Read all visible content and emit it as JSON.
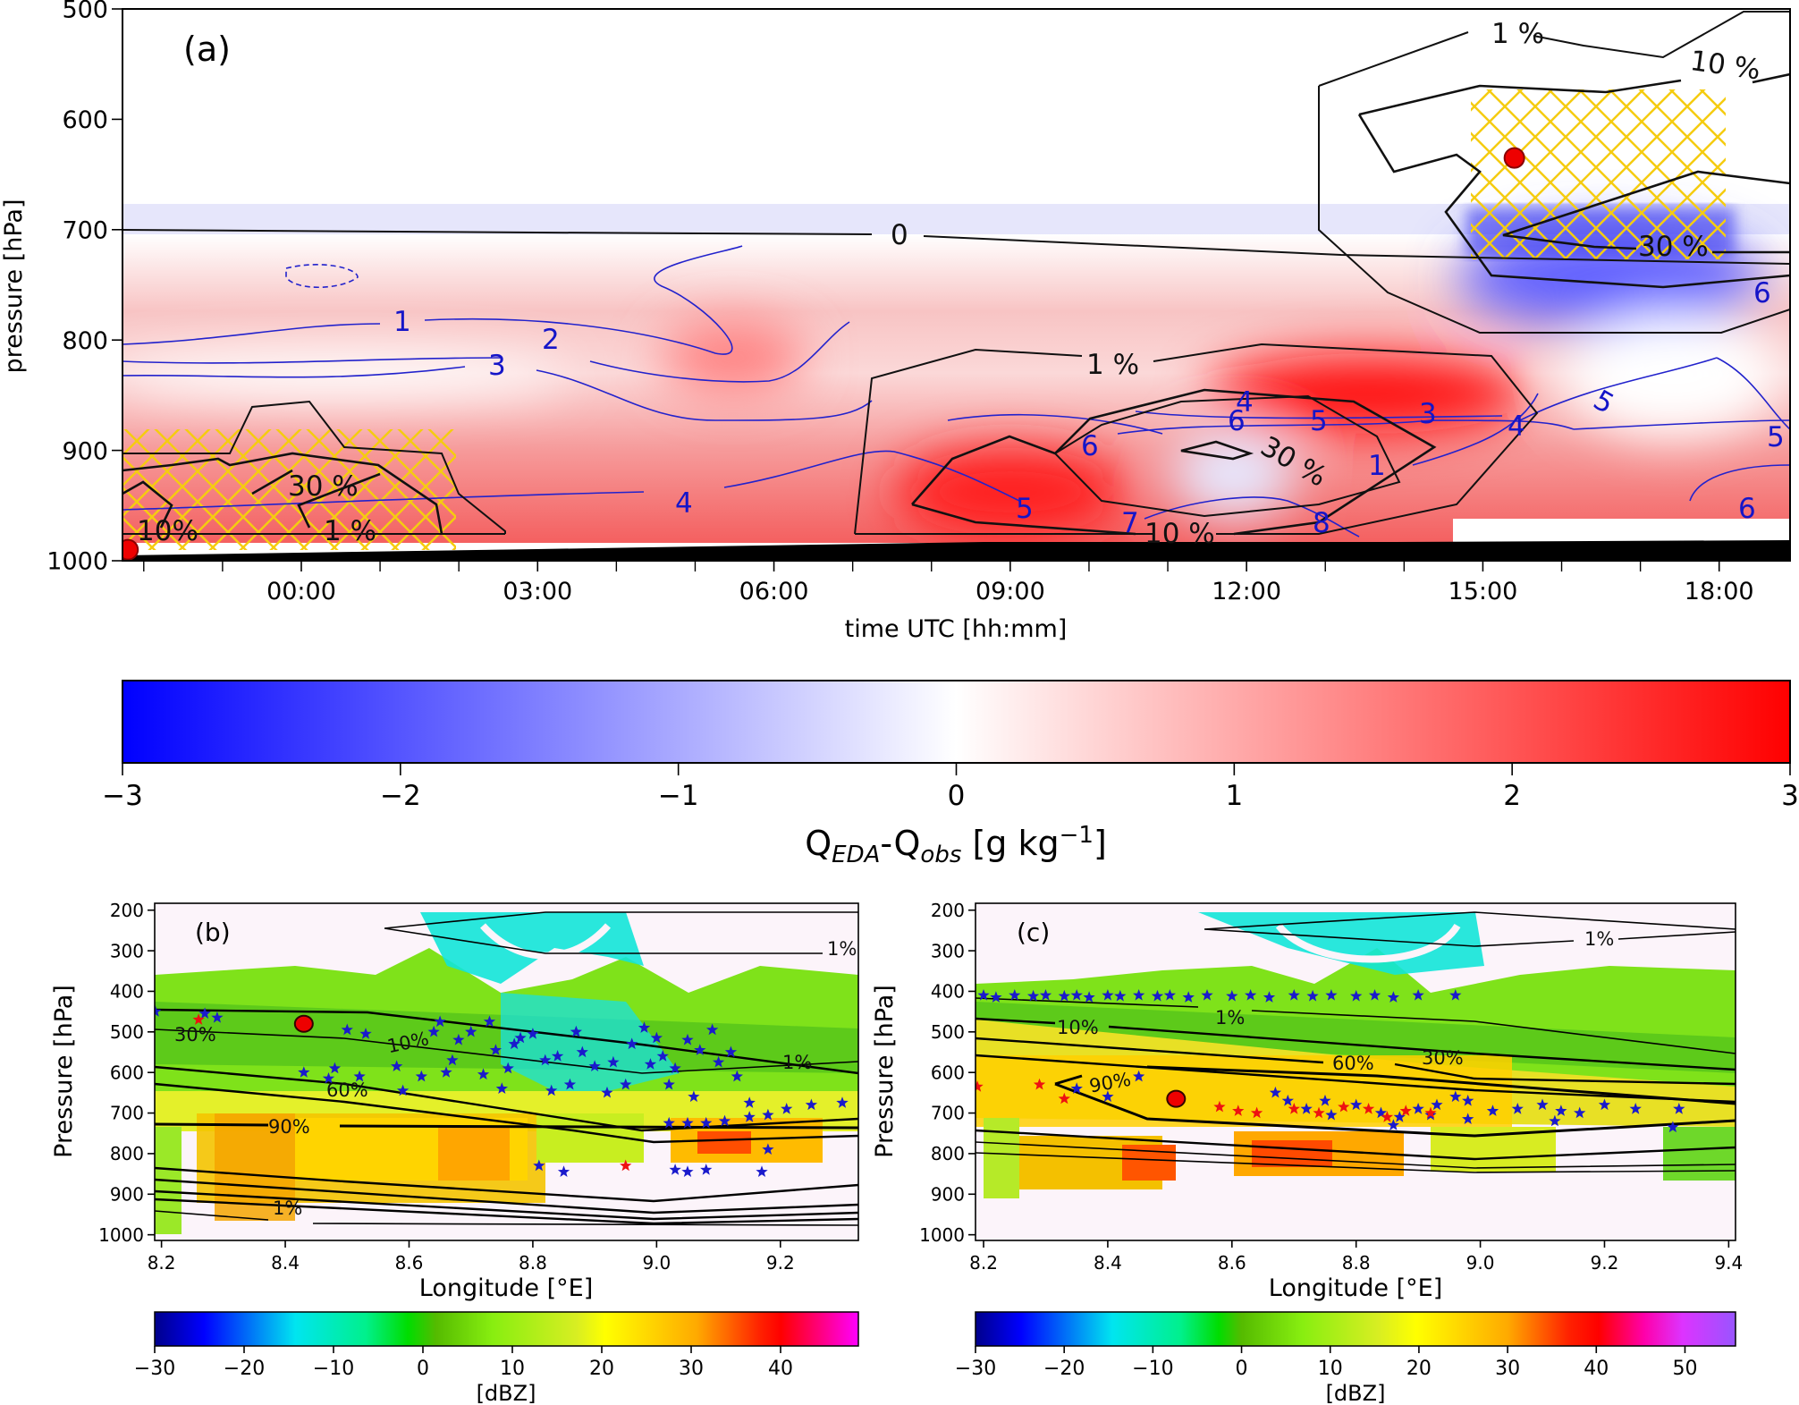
{
  "chart_data": [
    {
      "panel": "(a)",
      "type": "heatmap",
      "xlabel": "time UTC [hh:mm]",
      "ylabel": "pressure [hPa]",
      "xlim_hours": [
        -2.27,
        18.9
      ],
      "ylim": [
        1000,
        500
      ],
      "xticks": [
        0,
        3,
        6,
        9,
        12,
        15,
        18
      ],
      "xtick_labels": [
        "00:00",
        "03:00",
        "06:00",
        "09:00",
        "12:00",
        "15:00",
        "18:00"
      ],
      "yticks": [
        500,
        600,
        700,
        800,
        900,
        1000
      ],
      "ytick_labels": [
        "500",
        "600",
        "700",
        "800",
        "900",
        "1000"
      ],
      "black_contour_labels": [
        "1 %",
        "10 %",
        "30 %",
        "0",
        "1 %",
        "30 %",
        "10 %",
        "30 %",
        "10%",
        "1 %"
      ],
      "blue_contour_labels": [
        "1",
        "2",
        "3",
        "4",
        "5",
        "6",
        "4",
        "6",
        "5",
        "3",
        "4",
        "1",
        "8",
        "7",
        "5",
        "5",
        "6",
        "6"
      ],
      "markers": [
        {
          "time_h": 15.4,
          "pressure": 635
        },
        {
          "time_h": -2.2,
          "pressure": 990
        }
      ],
      "colorbar": {
        "label_main": "Q",
        "label_sub1": "EDA",
        "label_mid": "-Q",
        "label_sub2": "obs",
        "label_units": " [g kg",
        "label_sup": "−1",
        "label_end": "]",
        "range": [
          -3,
          3
        ],
        "ticks": [
          -3,
          -2,
          -1,
          0,
          1,
          2,
          3
        ],
        "tick_labels": [
          "−3",
          "−2",
          "−1",
          "0",
          "1",
          "2",
          "3"
        ],
        "colors": [
          "#0000ff",
          "#ffffff",
          "#ff0000"
        ]
      }
    },
    {
      "panel": "(b)",
      "type": "heatmap",
      "xlabel": "Longitude [°E]",
      "ylabel": "Pressure [hPa]",
      "xlim": [
        8.189,
        9.326
      ],
      "ylim": [
        1014,
        183
      ],
      "xticks": [
        8.2,
        8.4,
        8.6,
        8.8,
        9.0,
        9.2
      ],
      "xtick_labels": [
        "8.2",
        "8.4",
        "8.6",
        "8.8",
        "9.0",
        "9.2"
      ],
      "yticks": [
        200,
        300,
        400,
        500,
        600,
        700,
        800,
        900,
        1000
      ],
      "ytick_labels": [
        "200",
        "300",
        "400",
        "500",
        "600",
        "700",
        "800",
        "900",
        "1000"
      ],
      "contour_labels": [
        "1%",
        "10%",
        "30%",
        "1%",
        "60%",
        "90%",
        "1%"
      ],
      "marker": {
        "lon": 8.43,
        "pressure": 480
      },
      "blue_stars": [
        [
          8.19,
          450
        ],
        [
          8.27,
          455
        ],
        [
          8.29,
          465
        ],
        [
          8.43,
          600
        ],
        [
          8.47,
          615
        ],
        [
          8.48,
          590
        ],
        [
          8.5,
          495
        ],
        [
          8.52,
          610
        ],
        [
          8.53,
          505
        ],
        [
          8.58,
          585
        ],
        [
          8.59,
          645
        ],
        [
          8.62,
          610
        ],
        [
          8.64,
          500
        ],
        [
          8.65,
          475
        ],
        [
          8.66,
          600
        ],
        [
          8.67,
          570
        ],
        [
          8.68,
          520
        ],
        [
          8.7,
          500
        ],
        [
          8.72,
          605
        ],
        [
          8.73,
          475
        ],
        [
          8.74,
          545
        ],
        [
          8.75,
          640
        ],
        [
          8.76,
          590
        ],
        [
          8.77,
          530
        ],
        [
          8.78,
          515
        ],
        [
          8.8,
          505
        ],
        [
          8.82,
          570
        ],
        [
          8.83,
          645
        ],
        [
          8.84,
          560
        ],
        [
          8.86,
          630
        ],
        [
          8.87,
          500
        ],
        [
          8.88,
          550
        ],
        [
          8.9,
          585
        ],
        [
          8.92,
          650
        ],
        [
          8.93,
          575
        ],
        [
          8.95,
          630
        ],
        [
          8.96,
          530
        ],
        [
          8.98,
          490
        ],
        [
          8.99,
          580
        ],
        [
          9.0,
          515
        ],
        [
          9.01,
          560
        ],
        [
          9.02,
          630
        ],
        [
          9.03,
          590
        ],
        [
          9.05,
          520
        ],
        [
          9.06,
          660
        ],
        [
          9.07,
          545
        ],
        [
          9.09,
          495
        ],
        [
          9.1,
          575
        ],
        [
          9.12,
          550
        ],
        [
          9.13,
          610
        ],
        [
          9.15,
          675
        ],
        [
          9.18,
          705
        ],
        [
          9.21,
          690
        ],
        [
          9.25,
          680
        ],
        [
          9.3,
          675
        ],
        [
          8.81,
          830
        ],
        [
          8.85,
          845
        ],
        [
          9.03,
          840
        ],
        [
          9.05,
          845
        ],
        [
          9.08,
          840
        ],
        [
          9.17,
          845
        ],
        [
          9.18,
          790
        ],
        [
          9.02,
          725
        ],
        [
          9.05,
          725
        ],
        [
          9.08,
          725
        ],
        [
          9.11,
          720
        ],
        [
          9.15,
          710
        ]
      ],
      "red_stars": [
        [
          8.26,
          470
        ],
        [
          8.95,
          830
        ]
      ],
      "colorbar": {
        "label": "[dBZ]",
        "range": [
          -30,
          48.7
        ],
        "ticks": [
          -30,
          -20,
          -10,
          0,
          10,
          20,
          30,
          40
        ],
        "tick_labels": [
          "−30",
          "−20",
          "−10",
          "0",
          "10",
          "20",
          "30",
          "40"
        ]
      }
    },
    {
      "panel": "(c)",
      "type": "heatmap",
      "xlabel": "Longitude [°E]",
      "ylabel": "Pressure [hPa]",
      "xlim": [
        8.187,
        9.411
      ],
      "ylim": [
        1014,
        183
      ],
      "xticks": [
        8.2,
        8.4,
        8.6,
        8.8,
        9.0,
        9.2,
        9.4
      ],
      "xtick_labels": [
        "8.2",
        "8.4",
        "8.6",
        "8.8",
        "9.0",
        "9.2",
        "9.4"
      ],
      "yticks": [
        200,
        300,
        400,
        500,
        600,
        700,
        800,
        900,
        1000
      ],
      "ytick_labels": [
        "200",
        "300",
        "400",
        "500",
        "600",
        "700",
        "800",
        "900",
        "1000"
      ],
      "contour_labels": [
        "1%",
        "1%",
        "10%",
        "60%",
        "30%",
        "90%"
      ],
      "marker": {
        "lon": 8.51,
        "pressure": 665
      },
      "blue_stars": [
        [
          8.2,
          410
        ],
        [
          8.22,
          415
        ],
        [
          8.25,
          410
        ],
        [
          8.28,
          412
        ],
        [
          8.3,
          410
        ],
        [
          8.33,
          412
        ],
        [
          8.35,
          410
        ],
        [
          8.37,
          415
        ],
        [
          8.4,
          410
        ],
        [
          8.42,
          412
        ],
        [
          8.45,
          410
        ],
        [
          8.48,
          412
        ],
        [
          8.5,
          410
        ],
        [
          8.53,
          415
        ],
        [
          8.56,
          410
        ],
        [
          8.6,
          412
        ],
        [
          8.63,
          410
        ],
        [
          8.66,
          415
        ],
        [
          8.7,
          410
        ],
        [
          8.73,
          412
        ],
        [
          8.76,
          410
        ],
        [
          8.8,
          412
        ],
        [
          8.83,
          410
        ],
        [
          8.86,
          415
        ],
        [
          8.9,
          410
        ],
        [
          8.96,
          410
        ],
        [
          8.35,
          640
        ],
        [
          8.4,
          660
        ],
        [
          8.45,
          610
        ],
        [
          8.67,
          650
        ],
        [
          8.69,
          670
        ],
        [
          8.72,
          690
        ],
        [
          8.75,
          670
        ],
        [
          8.8,
          680
        ],
        [
          8.84,
          700
        ],
        [
          8.87,
          710
        ],
        [
          8.9,
          690
        ],
        [
          8.93,
          680
        ],
        [
          8.96,
          660
        ],
        [
          8.98,
          670
        ],
        [
          9.02,
          695
        ],
        [
          9.06,
          690
        ],
        [
          9.1,
          680
        ],
        [
          9.13,
          695
        ],
        [
          9.16,
          700
        ],
        [
          9.2,
          680
        ],
        [
          9.25,
          690
        ],
        [
          9.32,
          690
        ],
        [
          9.31,
          735
        ],
        [
          8.98,
          715
        ],
        [
          8.92,
          705
        ],
        [
          8.86,
          730
        ],
        [
          9.12,
          720
        ],
        [
          8.76,
          705
        ]
      ],
      "red_stars": [
        [
          8.19,
          635
        ],
        [
          8.29,
          630
        ],
        [
          8.33,
          665
        ],
        [
          8.58,
          685
        ],
        [
          8.61,
          695
        ],
        [
          8.64,
          700
        ],
        [
          8.7,
          690
        ],
        [
          8.74,
          700
        ],
        [
          8.78,
          685
        ],
        [
          8.82,
          690
        ],
        [
          8.85,
          710
        ],
        [
          8.88,
          695
        ],
        [
          8.92,
          700
        ]
      ],
      "colorbar": {
        "label": "[dBZ]",
        "range": [
          -30,
          55.7
        ],
        "ticks": [
          -30,
          -20,
          -10,
          0,
          10,
          20,
          30,
          40,
          50
        ],
        "tick_labels": [
          "−30",
          "−20",
          "−10",
          "0",
          "10",
          "20",
          "30",
          "40",
          "50"
        ]
      }
    }
  ]
}
